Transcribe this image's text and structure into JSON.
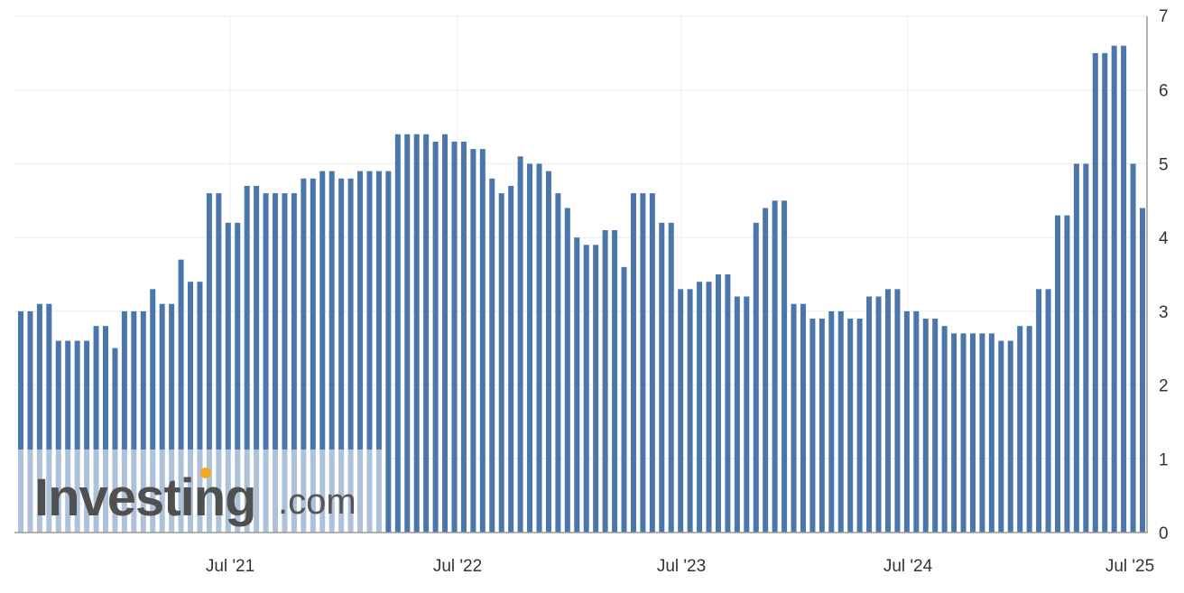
{
  "chart_data": {
    "type": "bar",
    "title": "",
    "xlabel": "",
    "ylabel": "",
    "ylim": [
      0,
      7
    ],
    "yticks": [
      "0",
      "1",
      "2",
      "3",
      "4",
      "5",
      "6",
      "7"
    ],
    "grid": true,
    "y_axis_position": "right",
    "x_tick_labels": [
      "Jul '21",
      "Jul '22",
      "Jul '23",
      "Jul '24",
      "Jul '25"
    ],
    "bar_color": "#4a76ac",
    "values": [
      3.0,
      3.0,
      3.1,
      3.1,
      2.6,
      2.6,
      2.6,
      2.6,
      2.8,
      2.8,
      2.5,
      3.0,
      3.0,
      3.0,
      3.3,
      3.1,
      3.1,
      3.7,
      3.4,
      3.4,
      4.6,
      4.6,
      4.2,
      4.2,
      4.7,
      4.7,
      4.6,
      4.6,
      4.6,
      4.6,
      4.8,
      4.8,
      4.9,
      4.9,
      4.8,
      4.8,
      4.9,
      4.9,
      4.9,
      4.9,
      5.4,
      5.4,
      5.4,
      5.4,
      5.3,
      5.4,
      5.3,
      5.3,
      5.2,
      5.2,
      4.8,
      4.6,
      4.7,
      5.1,
      5.0,
      5.0,
      4.9,
      4.6,
      4.4,
      4.0,
      3.9,
      3.9,
      4.1,
      4.1,
      3.6,
      4.6,
      4.6,
      4.6,
      4.2,
      4.2,
      3.3,
      3.3,
      3.4,
      3.4,
      3.5,
      3.5,
      3.2,
      3.2,
      4.2,
      4.4,
      4.5,
      4.5,
      3.1,
      3.1,
      2.9,
      2.9,
      3.0,
      3.0,
      2.9,
      2.9,
      3.2,
      3.2,
      3.3,
      3.3,
      3.0,
      3.0,
      2.9,
      2.9,
      2.8,
      2.7,
      2.7,
      2.7,
      2.7,
      2.7,
      2.6,
      2.6,
      2.8,
      2.8,
      3.3,
      3.3,
      4.3,
      4.3,
      5.0,
      5.0,
      6.5,
      6.5,
      6.6,
      6.6,
      5.0,
      4.4
    ]
  },
  "watermark": {
    "brand": "Investing",
    "suffix": ".com",
    "dot_color": "#f5a623"
  }
}
